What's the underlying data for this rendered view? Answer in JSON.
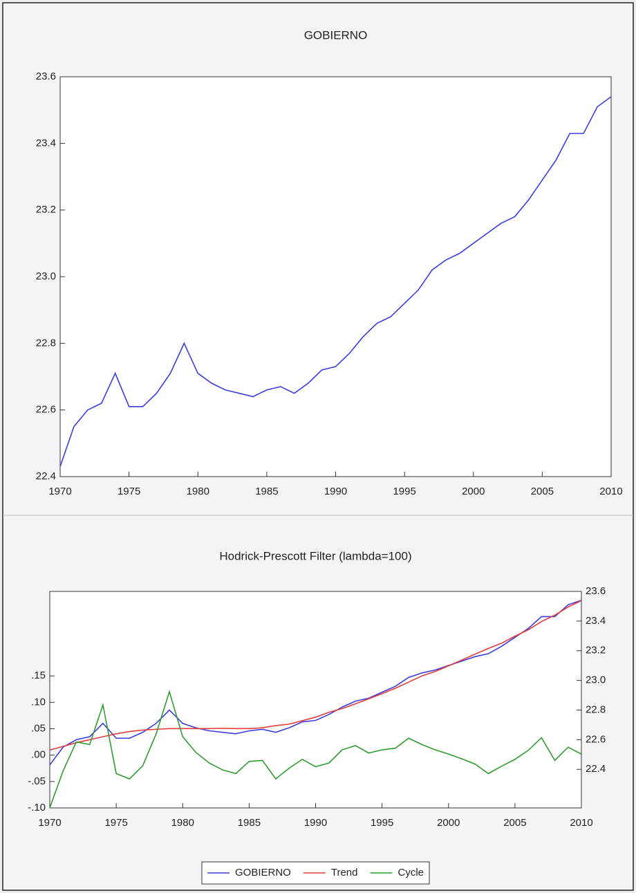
{
  "chart_data": [
    {
      "type": "line",
      "title": "GOBIERNO",
      "x": [
        1970,
        1971,
        1972,
        1973,
        1974,
        1975,
        1976,
        1977,
        1978,
        1979,
        1980,
        1981,
        1982,
        1983,
        1984,
        1985,
        1986,
        1987,
        1988,
        1989,
        1990,
        1991,
        1992,
        1993,
        1994,
        1995,
        1996,
        1997,
        1998,
        1999,
        2000,
        2001,
        2002,
        2003,
        2004,
        2005,
        2006,
        2007,
        2008,
        2009,
        2010
      ],
      "series": [
        {
          "color": "#3b3bdf",
          "values": [
            22.43,
            22.55,
            22.6,
            22.62,
            22.71,
            22.61,
            22.61,
            22.65,
            22.71,
            22.8,
            22.71,
            22.68,
            22.66,
            22.65,
            22.64,
            22.66,
            22.67,
            22.65,
            22.68,
            22.72,
            22.73,
            22.77,
            22.82,
            22.86,
            22.88,
            22.92,
            22.96,
            23.02,
            23.05,
            23.07,
            23.1,
            23.13,
            23.16,
            23.18,
            23.23,
            23.29,
            23.35,
            23.43,
            23.43,
            23.51,
            23.54
          ]
        }
      ],
      "xlim": [
        1970,
        2010
      ],
      "xticks": [
        1970,
        1975,
        1980,
        1985,
        1990,
        1995,
        2000,
        2005,
        2010
      ],
      "ylim": [
        22.4,
        23.6
      ],
      "yticks": [
        22.4,
        22.6,
        22.8,
        {
          "value": 23.0,
          "label": "23.0"
        },
        23.2,
        23.4,
        23.6
      ]
    },
    {
      "type": "line",
      "title": "Hodrick-Prescott Filter (lambda=100)",
      "x": [
        1970,
        1971,
        1972,
        1973,
        1974,
        1975,
        1976,
        1977,
        1978,
        1979,
        1980,
        1981,
        1982,
        1983,
        1984,
        1985,
        1986,
        1987,
        1988,
        1989,
        1990,
        1991,
        1992,
        1993,
        1994,
        1995,
        1996,
        1997,
        1998,
        1999,
        2000,
        2001,
        2002,
        2003,
        2004,
        2005,
        2006,
        2007,
        2008,
        2009,
        2010
      ],
      "series": [
        {
          "name": "GOBIERNO",
          "color": "#3b3bdf",
          "axis": "y2",
          "values": [
            22.43,
            22.55,
            22.6,
            22.62,
            22.71,
            22.61,
            22.61,
            22.65,
            22.71,
            22.8,
            22.71,
            22.68,
            22.66,
            22.65,
            22.64,
            22.66,
            22.67,
            22.65,
            22.68,
            22.72,
            22.73,
            22.77,
            22.82,
            22.86,
            22.88,
            22.92,
            22.96,
            23.02,
            23.05,
            23.07,
            23.1,
            23.13,
            23.16,
            23.18,
            23.23,
            23.29,
            23.35,
            23.43,
            23.43,
            23.51,
            23.54
          ]
        },
        {
          "name": "Trend",
          "color": "#e53a3a",
          "axis": "y2",
          "values": [
            22.53,
            22.555,
            22.58,
            22.6,
            22.62,
            22.64,
            22.655,
            22.665,
            22.67,
            22.675,
            22.675,
            22.675,
            22.675,
            22.677,
            22.675,
            22.675,
            22.68,
            22.695,
            22.705,
            22.728,
            22.752,
            22.785,
            22.81,
            22.842,
            22.876,
            22.91,
            22.947,
            22.988,
            23.03,
            23.06,
            23.098,
            23.137,
            23.177,
            23.215,
            23.251,
            23.298,
            23.341,
            23.397,
            23.44,
            23.495,
            23.538
          ]
        },
        {
          "name": "Cycle",
          "color": "#2e9b2e",
          "values": [
            -0.1,
            -0.03,
            0.025,
            0.02,
            0.095,
            -0.035,
            -0.045,
            -0.02,
            0.04,
            0.12,
            0.035,
            0.005,
            -0.015,
            -0.028,
            -0.035,
            -0.012,
            -0.01,
            -0.045,
            -0.025,
            -0.008,
            -0.022,
            -0.015,
            0.01,
            0.018,
            0.004,
            0.01,
            0.013,
            0.032,
            0.02,
            0.01,
            0.002,
            -0.007,
            -0.017,
            -0.035,
            -0.021,
            -0.008,
            0.009,
            0.033,
            -0.01,
            0.015,
            0.002
          ]
        }
      ],
      "xlim": [
        1970,
        2010
      ],
      "xticks": [
        1970,
        1975,
        1980,
        1985,
        1990,
        1995,
        2000,
        2005,
        2010
      ],
      "ylim": [
        -0.1,
        0.31
      ],
      "yticks": [
        {
          "value": -0.1,
          "label": "-.10"
        },
        {
          "value": -0.05,
          "label": "-.05"
        },
        {
          "value": 0,
          "label": ".00"
        },
        {
          "value": 0.05,
          "label": ".05"
        },
        {
          "value": 0.1,
          "label": ".10"
        },
        {
          "value": 0.15,
          "label": ".15"
        }
      ],
      "y2lim": [
        22.14,
        23.6
      ],
      "y2ticks": [
        22.4,
        22.6,
        22.8,
        {
          "value": 23.0,
          "label": "23.0"
        },
        23.2,
        23.4,
        23.6
      ],
      "legend": "bottom"
    }
  ]
}
